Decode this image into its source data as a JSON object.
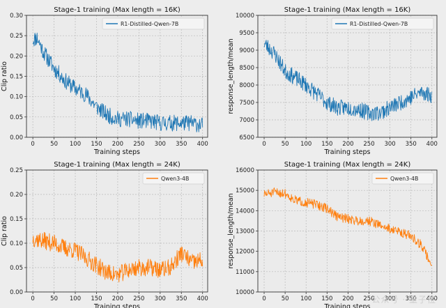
{
  "watermark": "公众号 · 量子位",
  "chart_data": [
    {
      "type": "line",
      "title": "Stage-1 training (Max length = 16K)",
      "xlabel": "Training steps",
      "ylabel": "Clip ratio",
      "xlim": [
        -15,
        412
      ],
      "ylim": [
        0.0,
        0.3
      ],
      "xticks": [
        0,
        50,
        100,
        150,
        200,
        250,
        300,
        350,
        400
      ],
      "yticks": [
        "0.00",
        "0.05",
        "0.10",
        "0.15",
        "0.20",
        "0.25",
        "0.30"
      ],
      "grid": true,
      "legend_position": "top-right",
      "series": [
        {
          "name": "R1-Distilled-Qwen-7B",
          "color": "#1f77b4",
          "anchors": [
            [
              0,
              0.24
            ],
            [
              10,
              0.245
            ],
            [
              25,
              0.21
            ],
            [
              50,
              0.17
            ],
            [
              75,
              0.14
            ],
            [
              100,
              0.12
            ],
            [
              125,
              0.105
            ],
            [
              150,
              0.075
            ],
            [
              175,
              0.055
            ],
            [
              200,
              0.045
            ],
            [
              225,
              0.045
            ],
            [
              250,
              0.04
            ],
            [
              275,
              0.04
            ],
            [
              300,
              0.035
            ],
            [
              325,
              0.035
            ],
            [
              350,
              0.035
            ],
            [
              375,
              0.035
            ],
            [
              400,
              0.03
            ]
          ],
          "noise": 0.02,
          "seed": 11
        }
      ]
    },
    {
      "type": "line",
      "title": "Stage-1 training (Max length = 16K)",
      "xlabel": "Training steps",
      "ylabel": "response_length/mean",
      "xlim": [
        -15,
        412
      ],
      "ylim": [
        6500,
        10000
      ],
      "xticks": [
        0,
        50,
        100,
        150,
        200,
        250,
        300,
        350,
        400
      ],
      "yticks": [
        "6500",
        "7000",
        "7500",
        "8000",
        "8500",
        "9000",
        "9500",
        "10000"
      ],
      "grid": true,
      "legend_position": "top-right",
      "series": [
        {
          "name": "R1-Distilled-Qwen-7B",
          "color": "#1f77b4",
          "anchors": [
            [
              0,
              9200
            ],
            [
              25,
              8900
            ],
            [
              50,
              8400
            ],
            [
              75,
              8200
            ],
            [
              100,
              8000
            ],
            [
              125,
              7750
            ],
            [
              150,
              7500
            ],
            [
              175,
              7350
            ],
            [
              200,
              7350
            ],
            [
              225,
              7300
            ],
            [
              250,
              7200
            ],
            [
              275,
              7200
            ],
            [
              300,
              7350
            ],
            [
              325,
              7500
            ],
            [
              350,
              7650
            ],
            [
              375,
              7800
            ],
            [
              400,
              7700
            ]
          ],
          "noise": 230,
          "seed": 23
        }
      ]
    },
    {
      "type": "line",
      "title": "Stage-1 training (Max length = 24K)",
      "xlabel": "Training steps",
      "ylabel": "Clip ratio",
      "xlim": [
        -15,
        412
      ],
      "ylim": [
        0.0,
        0.25
      ],
      "xticks": [
        0,
        50,
        100,
        150,
        200,
        250,
        300,
        350,
        400
      ],
      "yticks": [
        "0.00",
        "0.05",
        "0.10",
        "0.15",
        "0.20",
        "0.25"
      ],
      "grid": true,
      "legend_position": "top-right",
      "series": [
        {
          "name": "Qwen3-4B",
          "color": "#ff7f0e",
          "anchors": [
            [
              0,
              0.11
            ],
            [
              25,
              0.105
            ],
            [
              50,
              0.1
            ],
            [
              75,
              0.09
            ],
            [
              100,
              0.085
            ],
            [
              125,
              0.07
            ],
            [
              150,
              0.055
            ],
            [
              175,
              0.04
            ],
            [
              200,
              0.035
            ],
            [
              225,
              0.045
            ],
            [
              250,
              0.05
            ],
            [
              275,
              0.05
            ],
            [
              300,
              0.045
            ],
            [
              325,
              0.05
            ],
            [
              350,
              0.08
            ],
            [
              375,
              0.06
            ],
            [
              400,
              0.065
            ]
          ],
          "noise": 0.018,
          "seed": 37
        }
      ]
    },
    {
      "type": "line",
      "title": "Stage-1 training (Max length = 24K)",
      "xlabel": "Training steps",
      "ylabel": "response_length/mean",
      "xlim": [
        -15,
        412
      ],
      "ylim": [
        10000,
        16000
      ],
      "xticks": [
        0,
        50,
        100,
        150,
        200,
        250,
        300,
        350,
        400
      ],
      "yticks": [
        "10000",
        "11000",
        "12000",
        "13000",
        "14000",
        "15000",
        "16000"
      ],
      "grid": true,
      "legend_position": "top-right",
      "series": [
        {
          "name": "Qwen3-4B",
          "color": "#ff7f0e",
          "anchors": [
            [
              0,
              14800
            ],
            [
              25,
              14900
            ],
            [
              50,
              14850
            ],
            [
              75,
              14500
            ],
            [
              100,
              14400
            ],
            [
              125,
              14300
            ],
            [
              150,
              14100
            ],
            [
              175,
              13700
            ],
            [
              200,
              13600
            ],
            [
              225,
              13500
            ],
            [
              250,
              13500
            ],
            [
              275,
              13300
            ],
            [
              300,
              13100
            ],
            [
              325,
              12950
            ],
            [
              350,
              12750
            ],
            [
              375,
              12300
            ],
            [
              400,
              11300
            ]
          ],
          "noise": 230,
          "seed": 51
        }
      ]
    }
  ]
}
